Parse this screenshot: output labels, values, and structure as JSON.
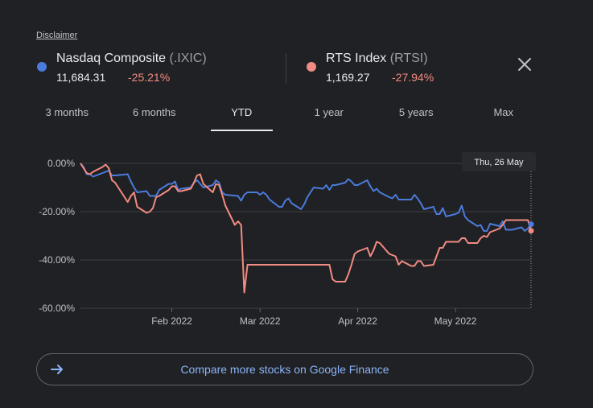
{
  "disclaimer": "Disclaimer",
  "colors": {
    "nasdaq": "#4b7bdc",
    "rts": "#f28b82",
    "negative": "#f28b82",
    "background": "#202124",
    "link": "#8ab4f8"
  },
  "legend": [
    {
      "name": "Nasdaq Composite",
      "symbol": "(.IXIC)",
      "price": "11,684.31",
      "change": "-25.21%"
    },
    {
      "name": "RTS Index",
      "symbol": "(RTSI)",
      "price": "1,169.27",
      "change": "-27.94%"
    }
  ],
  "icons": {
    "close": "close-icon",
    "arrow": "arrow-right-icon"
  },
  "tabs": [
    "3 months",
    "6 months",
    "YTD",
    "1 year",
    "5 years",
    "Max"
  ],
  "active_tab": "YTD",
  "compare_label": "Compare more stocks on Google Finance",
  "chart_data": {
    "type": "line",
    "ytick_labels": [
      "0.00%",
      "-20.00%",
      "-40.00%",
      "-60.00%"
    ],
    "y_ticks": [
      0,
      -20,
      -40,
      -60
    ],
    "ylim": [
      -60,
      0
    ],
    "x_range": [
      "2022-01-03",
      "2022-05-26"
    ],
    "x_ticks": [
      {
        "label": "Feb 2022",
        "date": "2022-02-01"
      },
      {
        "label": "Mar 2022",
        "date": "2022-03-01"
      },
      {
        "label": "Apr 2022",
        "date": "2022-04-01"
      },
      {
        "label": "May 2022",
        "date": "2022-05-02"
      }
    ],
    "tooltip": {
      "label": "Thu, 26 May",
      "date": "2022-05-26"
    },
    "grid": true,
    "series": [
      {
        "name": "Nasdaq Composite",
        "color": "#4b7bdc",
        "points": [
          [
            "2022-01-03",
            0
          ],
          [
            "2022-01-04",
            -1.5
          ],
          [
            "2022-01-05",
            -4.5
          ],
          [
            "2022-01-06",
            -4.5
          ],
          [
            "2022-01-07",
            -5.5
          ],
          [
            "2022-01-10",
            -4
          ],
          [
            "2022-01-11",
            -3.5
          ],
          [
            "2022-01-12",
            -3
          ],
          [
            "2022-01-13",
            -5
          ],
          [
            "2022-01-14",
            -5
          ],
          [
            "2022-01-18",
            -4.5
          ],
          [
            "2022-01-19",
            -7.5
          ],
          [
            "2022-01-20",
            -10
          ],
          [
            "2022-01-21",
            -12
          ],
          [
            "2022-01-24",
            -11.5
          ],
          [
            "2022-01-25",
            -13.5
          ],
          [
            "2022-01-26",
            -13.5
          ],
          [
            "2022-01-27",
            -13.5
          ],
          [
            "2022-01-28",
            -11
          ],
          [
            "2022-01-31",
            -8.5
          ],
          [
            "2022-02-01",
            -8.5
          ],
          [
            "2022-02-02",
            -7.5
          ],
          [
            "2022-02-03",
            -11
          ],
          [
            "2022-02-04",
            -10.5
          ],
          [
            "2022-02-07",
            -10
          ],
          [
            "2022-02-08",
            -8
          ],
          [
            "2022-02-09",
            -7
          ],
          [
            "2022-02-10",
            -8.5
          ],
          [
            "2022-02-11",
            -10
          ],
          [
            "2022-02-14",
            -9
          ],
          [
            "2022-02-15",
            -7
          ],
          [
            "2022-02-16",
            -8
          ],
          [
            "2022-02-17",
            -12
          ],
          [
            "2022-02-18",
            -13
          ],
          [
            "2022-02-22",
            -13.5
          ],
          [
            "2022-02-23",
            -15.5
          ],
          [
            "2022-02-24",
            -13
          ],
          [
            "2022-02-25",
            -12
          ],
          [
            "2022-02-28",
            -12
          ],
          [
            "2022-03-01",
            -13
          ],
          [
            "2022-03-02",
            -12
          ],
          [
            "2022-03-03",
            -13
          ],
          [
            "2022-03-04",
            -15
          ],
          [
            "2022-03-07",
            -18
          ],
          [
            "2022-03-08",
            -18
          ],
          [
            "2022-03-09",
            -15.5
          ],
          [
            "2022-03-10",
            -14.5
          ],
          [
            "2022-03-11",
            -16.5
          ],
          [
            "2022-03-14",
            -19
          ],
          [
            "2022-03-15",
            -17
          ],
          [
            "2022-03-16",
            -14
          ],
          [
            "2022-03-17",
            -12
          ],
          [
            "2022-03-18",
            -10
          ],
          [
            "2022-03-21",
            -10.5
          ],
          [
            "2022-03-22",
            -9
          ],
          [
            "2022-03-23",
            -11
          ],
          [
            "2022-03-24",
            -9
          ],
          [
            "2022-03-25",
            -9
          ],
          [
            "2022-03-28",
            -8
          ],
          [
            "2022-03-29",
            -6.5
          ],
          [
            "2022-03-30",
            -7.5
          ],
          [
            "2022-03-31",
            -9
          ],
          [
            "2022-04-01",
            -9
          ],
          [
            "2022-04-04",
            -7
          ],
          [
            "2022-04-05",
            -9.5
          ],
          [
            "2022-04-06",
            -11.5
          ],
          [
            "2022-04-07",
            -10.5
          ],
          [
            "2022-04-08",
            -12
          ],
          [
            "2022-04-11",
            -14
          ],
          [
            "2022-04-12",
            -14.5
          ],
          [
            "2022-04-13",
            -13
          ],
          [
            "2022-04-14",
            -15
          ],
          [
            "2022-04-18",
            -15
          ],
          [
            "2022-04-19",
            -13
          ],
          [
            "2022-04-20",
            -14.5
          ],
          [
            "2022-04-21",
            -16.5
          ],
          [
            "2022-04-22",
            -19
          ],
          [
            "2022-04-25",
            -18
          ],
          [
            "2022-04-26",
            -21
          ],
          [
            "2022-04-27",
            -21
          ],
          [
            "2022-04-28",
            -18.5
          ],
          [
            "2022-04-29",
            -22
          ],
          [
            "2022-05-02",
            -21
          ],
          [
            "2022-05-03",
            -20.5
          ],
          [
            "2022-05-04",
            -17.5
          ],
          [
            "2022-05-05",
            -22
          ],
          [
            "2022-05-06",
            -23.5
          ],
          [
            "2022-05-09",
            -26
          ],
          [
            "2022-05-10",
            -25.5
          ],
          [
            "2022-05-11",
            -28
          ],
          [
            "2022-05-12",
            -28
          ],
          [
            "2022-05-13",
            -25
          ],
          [
            "2022-05-16",
            -26
          ],
          [
            "2022-05-17",
            -24
          ],
          [
            "2022-05-18",
            -27.5
          ],
          [
            "2022-05-19",
            -27.5
          ],
          [
            "2022-05-20",
            -27.5
          ],
          [
            "2022-05-23",
            -26.5
          ],
          [
            "2022-05-24",
            -28
          ],
          [
            "2022-05-25",
            -27
          ],
          [
            "2022-05-26",
            -25.21
          ]
        ]
      },
      {
        "name": "RTS Index",
        "color": "#f28b82",
        "points": [
          [
            "2022-01-03",
            0
          ],
          [
            "2022-01-04",
            -2
          ],
          [
            "2022-01-05",
            -4
          ],
          [
            "2022-01-06",
            -4.5
          ],
          [
            "2022-01-07",
            -3.5
          ],
          [
            "2022-01-10",
            -1.5
          ],
          [
            "2022-01-11",
            -0.5
          ],
          [
            "2022-01-12",
            -2
          ],
          [
            "2022-01-13",
            -7
          ],
          [
            "2022-01-14",
            -8
          ],
          [
            "2022-01-18",
            -16
          ],
          [
            "2022-01-19",
            -13.5
          ],
          [
            "2022-01-20",
            -12
          ],
          [
            "2022-01-21",
            -18
          ],
          [
            "2022-01-24",
            -20.5
          ],
          [
            "2022-01-25",
            -20
          ],
          [
            "2022-01-26",
            -18.5
          ],
          [
            "2022-01-27",
            -14
          ],
          [
            "2022-01-28",
            -13.5
          ],
          [
            "2022-01-31",
            -11
          ],
          [
            "2022-02-01",
            -9.5
          ],
          [
            "2022-02-02",
            -9.5
          ],
          [
            "2022-02-03",
            -11.5
          ],
          [
            "2022-02-04",
            -11.5
          ],
          [
            "2022-02-07",
            -10.5
          ],
          [
            "2022-02-08",
            -8
          ],
          [
            "2022-02-09",
            -5
          ],
          [
            "2022-02-10",
            -4.5
          ],
          [
            "2022-02-11",
            -8.5
          ],
          [
            "2022-02-14",
            -12
          ],
          [
            "2022-02-15",
            -8.5
          ],
          [
            "2022-02-16",
            -9
          ],
          [
            "2022-02-17",
            -13
          ],
          [
            "2022-02-18",
            -17.5
          ],
          [
            "2022-02-21",
            -25.5
          ],
          [
            "2022-02-22",
            -24
          ],
          [
            "2022-02-23",
            -25.5
          ],
          [
            "2022-02-24",
            -53.5
          ],
          [
            "2022-02-25",
            -42
          ],
          [
            "2022-03-23",
            -42
          ],
          [
            "2022-03-24",
            -48
          ],
          [
            "2022-03-25",
            -49
          ],
          [
            "2022-03-28",
            -49
          ],
          [
            "2022-03-29",
            -46
          ],
          [
            "2022-03-30",
            -42
          ],
          [
            "2022-03-31",
            -37.5
          ],
          [
            "2022-04-01",
            -36.5
          ],
          [
            "2022-04-04",
            -35
          ],
          [
            "2022-04-05",
            -38.5
          ],
          [
            "2022-04-06",
            -36
          ],
          [
            "2022-04-07",
            -32.5
          ],
          [
            "2022-04-08",
            -33
          ],
          [
            "2022-04-11",
            -37.5
          ],
          [
            "2022-04-12",
            -38
          ],
          [
            "2022-04-13",
            -38.5
          ],
          [
            "2022-04-14",
            -42
          ],
          [
            "2022-04-15",
            -40.5
          ],
          [
            "2022-04-18",
            -42.5
          ],
          [
            "2022-04-19",
            -42.5
          ],
          [
            "2022-04-20",
            -40.5
          ],
          [
            "2022-04-21",
            -40.5
          ],
          [
            "2022-04-22",
            -42.5
          ],
          [
            "2022-04-25",
            -42
          ],
          [
            "2022-04-26",
            -38.5
          ],
          [
            "2022-04-27",
            -35
          ],
          [
            "2022-04-28",
            -35
          ],
          [
            "2022-04-29",
            -32.5
          ],
          [
            "2022-05-02",
            -32.5
          ],
          [
            "2022-05-03",
            -32.5
          ],
          [
            "2022-05-04",
            -31
          ],
          [
            "2022-05-05",
            -31
          ],
          [
            "2022-05-06",
            -33
          ],
          [
            "2022-05-09",
            -33
          ],
          [
            "2022-05-10",
            -31
          ],
          [
            "2022-05-11",
            -30
          ],
          [
            "2022-05-12",
            -30.5
          ],
          [
            "2022-05-13",
            -28.5
          ],
          [
            "2022-05-16",
            -27
          ],
          [
            "2022-05-17",
            -25.5
          ],
          [
            "2022-05-18",
            -23.5
          ],
          [
            "2022-05-19",
            -23.5
          ],
          [
            "2022-05-20",
            -23.5
          ],
          [
            "2022-05-23",
            -23.5
          ],
          [
            "2022-05-24",
            -23.5
          ],
          [
            "2022-05-25",
            -23.5
          ],
          [
            "2022-05-26",
            -27.94
          ]
        ]
      }
    ]
  }
}
